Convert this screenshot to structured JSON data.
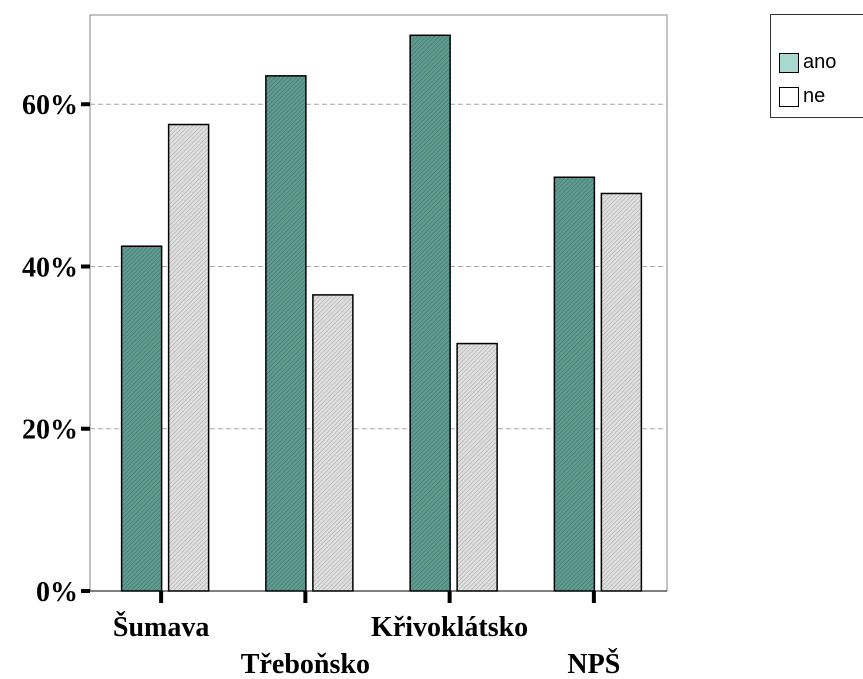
{
  "chart_data": {
    "type": "bar",
    "categories": [
      "Šumava",
      "Třeboňsko",
      "Křivoklátsko",
      "NPŠ"
    ],
    "series": [
      {
        "name": "ano",
        "values": [
          42.5,
          63.5,
          68.5,
          51.0
        ],
        "color": "#5f9a90"
      },
      {
        "name": "ne",
        "values": [
          57.5,
          36.5,
          30.5,
          49.0
        ],
        "color": "#d8d8d8"
      }
    ],
    "ylim": [
      0,
      71
    ],
    "yticks": [
      0,
      20,
      40,
      60
    ],
    "ytick_labels": [
      "0%",
      "20%",
      "40%",
      "60%"
    ],
    "grid": true,
    "legend": {
      "position": "top-right",
      "items": [
        "ano",
        "ne"
      ],
      "swatch_colors": [
        "#a9d8d0",
        "#ffffff"
      ]
    },
    "title": "",
    "xlabel": "",
    "ylabel": ""
  }
}
